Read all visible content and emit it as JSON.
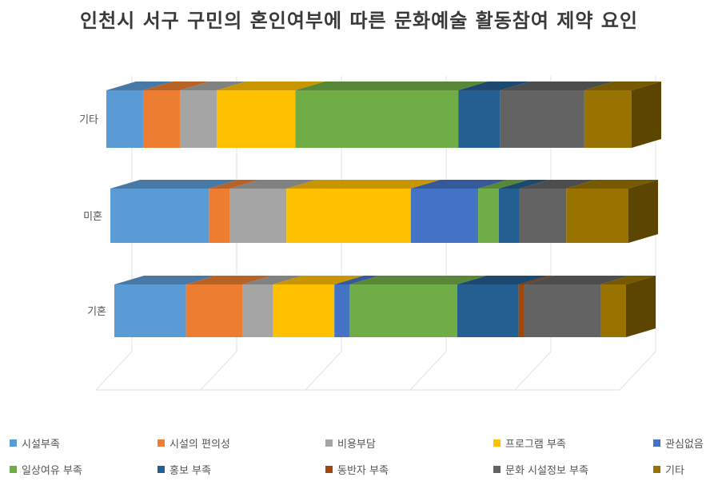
{
  "chart_data": {
    "type": "bar",
    "stacked": "percent",
    "orientation": "horizontal",
    "title": "인천시 서구 구민의 혼인여부에 따른 문화예술 활동참여 제약 요인",
    "categories": [
      "기타",
      "미혼",
      "기혼"
    ],
    "series": [
      {
        "name": "시설부족",
        "color": "#5b9bd5",
        "values": [
          7,
          19,
          14
        ]
      },
      {
        "name": "시설의 편의성",
        "color": "#ed7d31",
        "values": [
          7,
          4,
          11
        ]
      },
      {
        "name": "비용부담",
        "color": "#a5a5a5",
        "values": [
          7,
          11,
          6
        ]
      },
      {
        "name": "프로그램 부족",
        "color": "#ffc000",
        "values": [
          15,
          24,
          12
        ]
      },
      {
        "name": "관심없음",
        "color": "#4472c4",
        "values": [
          0,
          13,
          3
        ]
      },
      {
        "name": "일상여유 부족",
        "color": "#70ad47",
        "values": [
          31,
          4,
          21
        ]
      },
      {
        "name": "홍보 부족",
        "color": "#255e91",
        "values": [
          8,
          4,
          12
        ]
      },
      {
        "name": "동반자 부족",
        "color": "#9e480e",
        "values": [
          0,
          0,
          1
        ]
      },
      {
        "name": "문화 시설정보 부족",
        "color": "#636363",
        "values": [
          16,
          9,
          15
        ]
      },
      {
        "name": "기타",
        "color": "#997300",
        "values": [
          9,
          12,
          5
        ]
      }
    ],
    "grid": true,
    "legend_position": "bottom"
  }
}
